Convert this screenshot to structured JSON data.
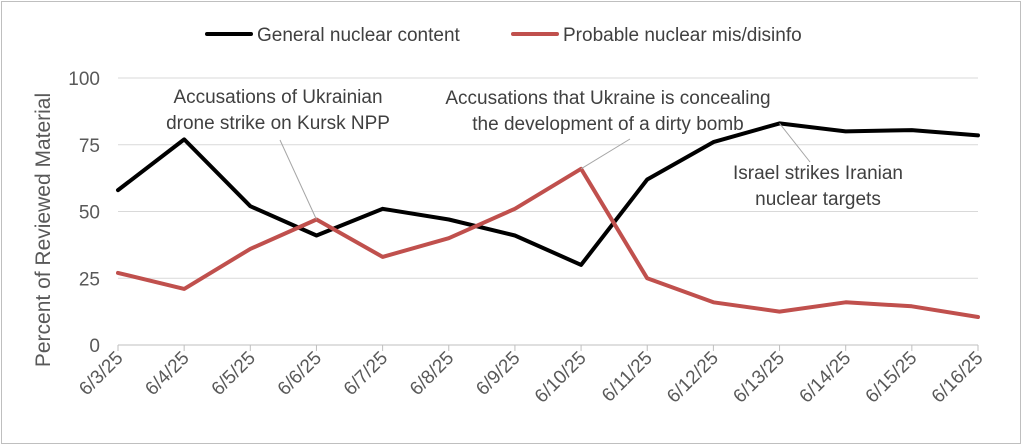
{
  "chart_data": {
    "type": "line",
    "title": "",
    "xlabel": "",
    "ylabel": "Percent of Reviewed Material",
    "ylim": [
      0,
      100
    ],
    "yticks": [
      0,
      25,
      50,
      75,
      100
    ],
    "grid": true,
    "legend_position": "top",
    "categories": [
      "6/3/25",
      "6/4/25",
      "6/5/25",
      "6/6/25",
      "6/7/25",
      "6/8/25",
      "6/9/25",
      "6/10/25",
      "6/11/25",
      "6/12/25",
      "6/13/25",
      "6/14/25",
      "6/15/25",
      "6/16/25"
    ],
    "series": [
      {
        "name": "General nuclear content",
        "color": "#000000",
        "values": [
          58,
          77,
          52,
          41,
          51,
          47,
          41,
          30,
          62,
          76,
          83,
          80,
          80.5,
          78.5
        ]
      },
      {
        "name": "Probable nuclear mis/disinfo",
        "color": "#c0504d",
        "values": [
          27,
          21,
          36,
          47,
          33,
          40,
          51,
          66,
          25,
          16,
          12.5,
          16,
          14.5,
          10.5
        ]
      }
    ],
    "annotations": [
      {
        "lines": [
          "Accusations of Ukrainian",
          "drone strike on Kursk NPP"
        ],
        "category": "6/6/25",
        "series": 1
      },
      {
        "lines": [
          "Accusations that Ukraine is concealing",
          "the development of a dirty bomb"
        ],
        "category": "6/10/25",
        "series": 1
      },
      {
        "lines": [
          "Israel strikes Iranian",
          "nuclear targets"
        ],
        "category": "6/13/25",
        "series": 0
      }
    ]
  }
}
